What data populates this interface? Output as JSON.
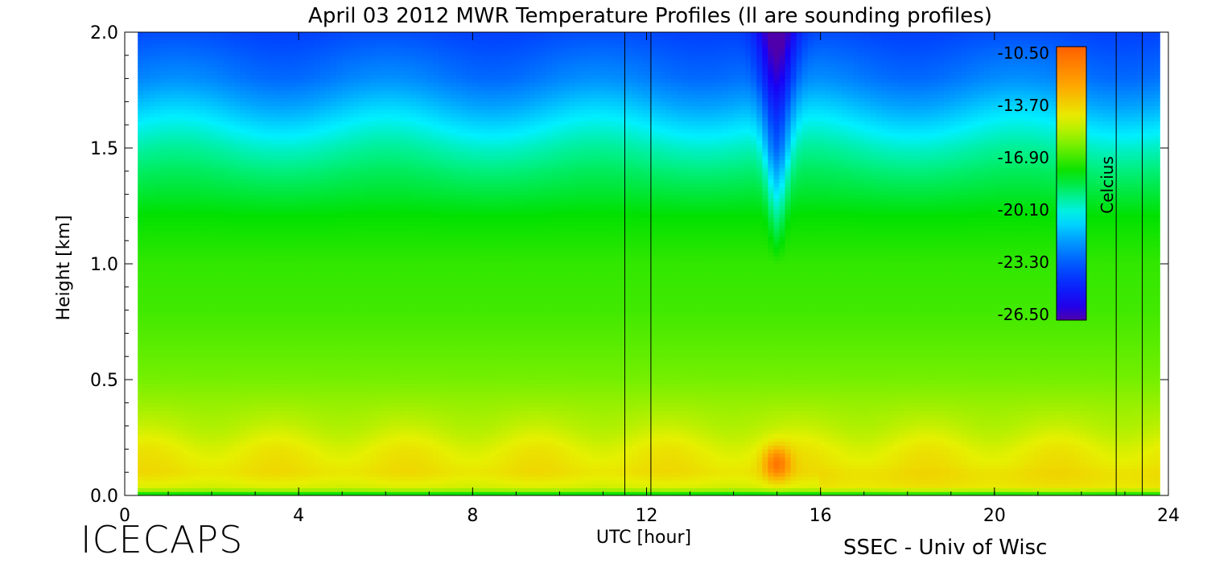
{
  "chart_data": {
    "type": "heatmap",
    "title": "April 03 2012 MWR Temperature Profiles (ll are sounding profiles)",
    "xlabel": "UTC [hour]",
    "ylabel": "Height [km]",
    "xlim": [
      0,
      24
    ],
    "ylim": [
      0,
      2.0
    ],
    "x_ticks": [
      "0",
      "4",
      "8",
      "12",
      "16",
      "20",
      "24"
    ],
    "y_ticks": [
      "0.0",
      "0.5",
      "1.0",
      "1.5",
      "2.0"
    ],
    "data_start_hour": 0.3,
    "data_end_hour": 23.8,
    "sounding_profiles_hour": [
      11.5,
      12.1,
      22.8,
      23.4
    ],
    "colorbar": {
      "label": "Celcius",
      "range": [
        -26.5,
        -10.5
      ],
      "ticks": [
        "-10.50",
        "-13.70",
        "-16.90",
        "-20.10",
        "-23.30",
        "-26.50"
      ]
    },
    "profile_heights_km": [
      0.0,
      0.03,
      0.1,
      0.2,
      0.3,
      0.5,
      0.8,
      1.0,
      1.2,
      1.4,
      1.5,
      1.6,
      1.7,
      1.8,
      2.0
    ],
    "base_profile_celsius": [
      -18.6,
      -15.0,
      -14.2,
      -14.6,
      -15.3,
      -16.3,
      -17.0,
      -17.2,
      -17.8,
      -18.9,
      -19.6,
      -20.5,
      -21.5,
      -22.5,
      -23.6
    ],
    "feature_notes": "near-surface warm spot (~-11.5 C) around 15 UTC at 0.1-0.2 km; cold V-shaped intrusion above 1.3 km around 15 UTC"
  },
  "footer": {
    "left": "ICECAPS",
    "right": "SSEC - Univ of Wisc"
  }
}
